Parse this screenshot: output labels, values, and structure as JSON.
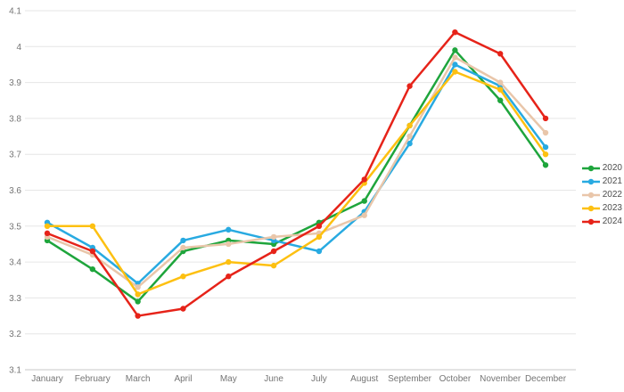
{
  "chart_data": {
    "type": "line",
    "x_categories": [
      "January",
      "February",
      "March",
      "April",
      "May",
      "June",
      "July",
      "August",
      "September",
      "October",
      "November",
      "December"
    ],
    "series": [
      {
        "name": "2020",
        "color": "#1ea53c",
        "values": [
          3.46,
          3.38,
          3.29,
          3.43,
          3.46,
          3.45,
          3.51,
          3.57,
          3.78,
          3.99,
          3.85,
          3.67
        ]
      },
      {
        "name": "2021",
        "color": "#28aae1",
        "values": [
          3.51,
          3.44,
          3.34,
          3.46,
          3.49,
          3.46,
          3.43,
          3.54,
          3.73,
          3.95,
          3.89,
          3.72
        ]
      },
      {
        "name": "2022",
        "color": "#e9c6aa",
        "values": [
          3.47,
          3.42,
          3.33,
          3.44,
          3.45,
          3.47,
          3.48,
          3.53,
          3.75,
          3.97,
          3.9,
          3.76
        ]
      },
      {
        "name": "2023",
        "color": "#fdc011",
        "values": [
          3.5,
          3.5,
          3.31,
          3.36,
          3.4,
          3.39,
          3.47,
          3.62,
          3.78,
          3.93,
          3.88,
          3.7
        ]
      },
      {
        "name": "2024",
        "color": "#e62319",
        "values": [
          3.48,
          3.43,
          3.25,
          3.27,
          3.36,
          3.43,
          3.5,
          3.63,
          3.89,
          4.04,
          3.98,
          3.8
        ]
      }
    ],
    "title": "",
    "xlabel": "",
    "ylabel": "",
    "ylim": [
      3.1,
      4.1
    ],
    "ytick_step": 0.1,
    "ytick_labels": [
      "3.1",
      "3.2",
      "3.3",
      "3.4",
      "3.5",
      "3.6",
      "3.7",
      "3.8",
      "3.9",
      "4",
      "4.1"
    ],
    "grid": true,
    "legend_position": "right",
    "marker": "circle"
  },
  "colors": {
    "background": "#ffffff",
    "axis_text": "#757575",
    "gridline": "#e6e6e6",
    "axis_line": "#c7c7c7",
    "legend_text": "#4d4d4d"
  }
}
